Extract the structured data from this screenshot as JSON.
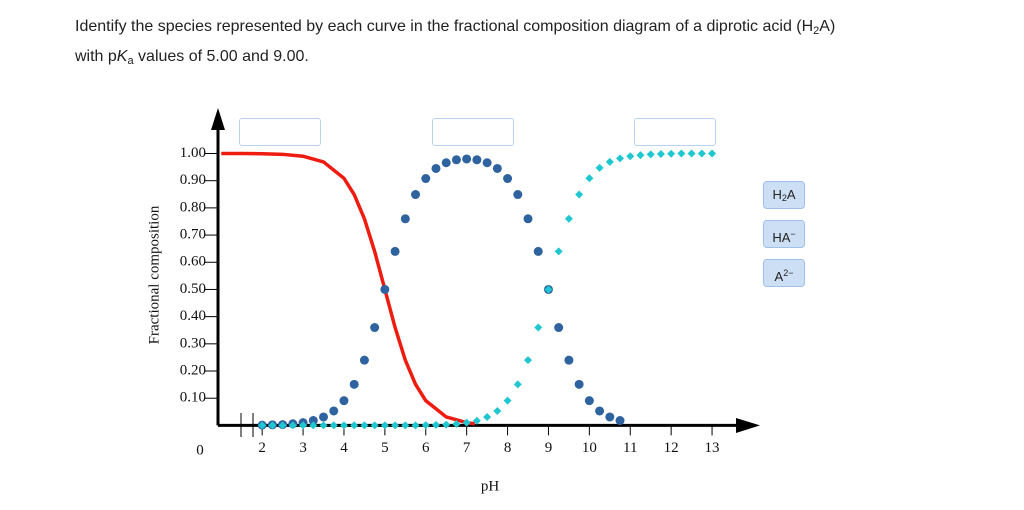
{
  "question": {
    "lines": [
      [
        {
          "text": "Identify the species represented by each curve in the fractional composition diagram of a diprotic acid (H"
        },
        {
          "text": "2",
          "style": "sub"
        },
        {
          "text": "A)"
        }
      ],
      [
        {
          "text": "with p"
        },
        {
          "text": "K",
          "style": "italic"
        },
        {
          "text": "a",
          "style": "sub"
        },
        {
          "text": " values of 5.00 and 9.00."
        }
      ]
    ]
  },
  "choices": [
    [
      {
        "text": "H"
      },
      {
        "text": "2",
        "style": "sub"
      },
      {
        "text": "A"
      }
    ],
    [
      {
        "text": "HA"
      },
      {
        "text": "−",
        "style": "sup"
      }
    ],
    [
      {
        "text": "A"
      },
      {
        "text": "2−",
        "style": "sup"
      }
    ]
  ],
  "chart_data": {
    "type": "line",
    "xlabel": "pH",
    "ylabel": "Fractional composition",
    "origin_label": "0",
    "xlim": [
      0.92,
      14.05
    ],
    "ylim": [
      0,
      1.16
    ],
    "xticks": [
      2,
      3,
      4,
      5,
      6,
      7,
      8,
      9,
      10,
      11,
      12,
      13
    ],
    "yticks": [
      {
        "value": 0.1,
        "label": "0.10"
      },
      {
        "value": 0.2,
        "label": "0.20"
      },
      {
        "value": 0.3,
        "label": "0.30"
      },
      {
        "value": 0.4,
        "label": "0.40"
      },
      {
        "value": 0.5,
        "label": "0.50"
      },
      {
        "value": 0.6,
        "label": "0.60"
      },
      {
        "value": 0.7,
        "label": "0.70"
      },
      {
        "value": 0.8,
        "label": "0.80"
      },
      {
        "value": 0.9,
        "label": "0.90"
      },
      {
        "value": 1.0,
        "label": "1.00"
      }
    ],
    "series": [
      {
        "style": "line",
        "color": "#ee1c10",
        "x": [
          1,
          1.5,
          2,
          2.5,
          3,
          3.5,
          4,
          4.25,
          4.5,
          4.75,
          5,
          5.25,
          5.5,
          5.75,
          6,
          6.5,
          7,
          7.2
        ],
        "values": [
          1.0,
          1.0,
          0.999,
          0.997,
          0.99,
          0.969,
          0.909,
          0.849,
          0.76,
          0.64,
          0.5,
          0.36,
          0.24,
          0.151,
          0.091,
          0.031,
          0.01,
          0.006
        ]
      },
      {
        "style": "circle",
        "color": "#2f63a0",
        "x": [
          2,
          2.25,
          2.5,
          2.75,
          3,
          3.25,
          3.5,
          3.75,
          4,
          4.25,
          4.5,
          4.75,
          5,
          5.25,
          5.5,
          5.75,
          6,
          6.25,
          6.5,
          6.75,
          7,
          7.25,
          7.5,
          7.75,
          8,
          8.25,
          8.5,
          8.75,
          9,
          9.25,
          9.5,
          9.75,
          10,
          10.25,
          10.5,
          10.75
        ],
        "values": [
          0.001,
          0.002,
          0.003,
          0.006,
          0.01,
          0.018,
          0.031,
          0.053,
          0.091,
          0.151,
          0.24,
          0.36,
          0.5,
          0.64,
          0.76,
          0.849,
          0.908,
          0.945,
          0.966,
          0.977,
          0.98,
          0.977,
          0.966,
          0.945,
          0.908,
          0.849,
          0.76,
          0.64,
          0.5,
          0.36,
          0.24,
          0.151,
          0.091,
          0.053,
          0.031,
          0.018
        ]
      },
      {
        "style": "diamond",
        "color": "#1fc7d1",
        "x": [
          2,
          2.25,
          2.5,
          2.75,
          3,
          3.25,
          3.5,
          3.75,
          4,
          4.25,
          4.5,
          4.75,
          5,
          5.25,
          5.5,
          5.75,
          6,
          6.25,
          6.5,
          6.75,
          7,
          7.25,
          7.5,
          7.75,
          8,
          8.25,
          8.5,
          8.75,
          9,
          9.25,
          9.5,
          9.75,
          10,
          10.25,
          10.5,
          10.75,
          11,
          11.25,
          11.5,
          11.75,
          12,
          12.25,
          12.5,
          12.75,
          13
        ],
        "values": [
          0,
          0,
          0,
          0,
          0,
          0,
          0,
          0,
          0,
          0,
          0,
          0,
          0,
          0,
          0,
          0,
          0.001,
          0.002,
          0.003,
          0.005,
          0.01,
          0.017,
          0.031,
          0.053,
          0.091,
          0.151,
          0.24,
          0.36,
          0.5,
          0.64,
          0.76,
          0.849,
          0.909,
          0.947,
          0.969,
          0.982,
          0.99,
          0.994,
          0.997,
          0.998,
          0.999,
          1.0,
          1.0,
          1.0,
          1.0
        ]
      }
    ]
  }
}
